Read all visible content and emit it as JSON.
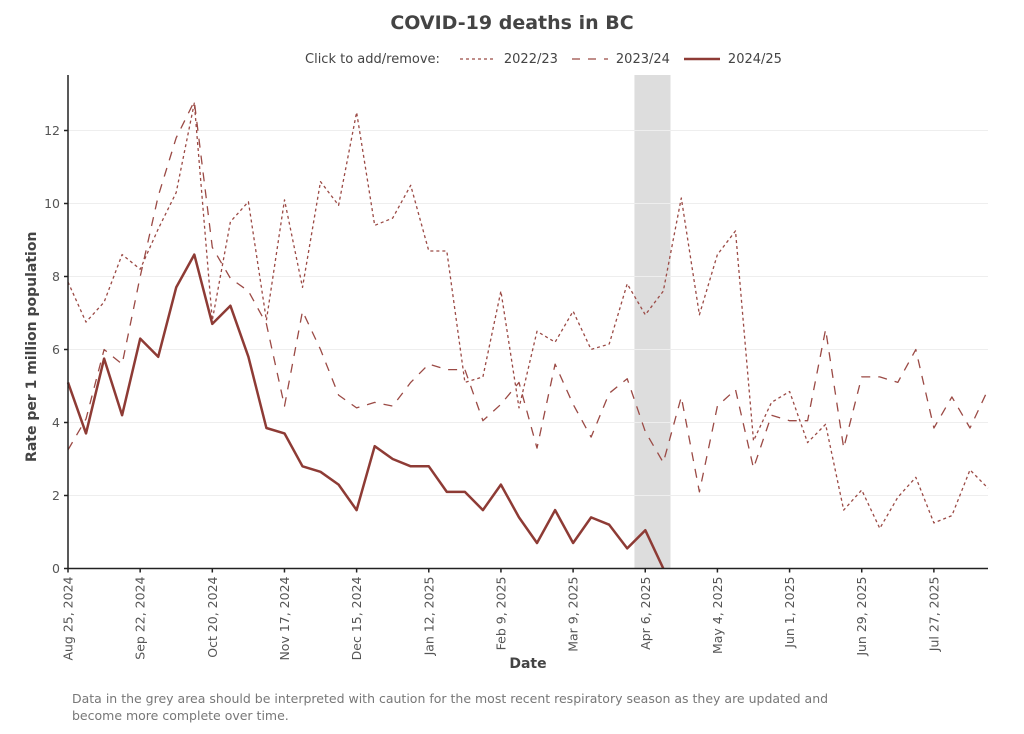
{
  "chart_data": {
    "type": "line",
    "title": "COVID-19 deaths in BC",
    "xlabel": "Date",
    "ylabel": "Rate per 1 million population",
    "ylim": [
      0,
      13.5
    ],
    "yticks": [
      0,
      2,
      4,
      6,
      8,
      10,
      12
    ],
    "x_start": "2024-08-25",
    "x_interval": "weekly",
    "xlim_weeks": [
      0,
      51
    ],
    "xtick_labels": [
      "Aug 25, 2024",
      "Sep 22, 2024",
      "Oct 20, 2024",
      "Nov 17, 2024",
      "Dec 15, 2024",
      "Jan 12, 2025",
      "Feb 9, 2025",
      "Mar 9, 2025",
      "Apr 6, 2025",
      "May 4, 2025",
      "Jun 1, 2025",
      "Jun 29, 2025",
      "Jul 27, 2025"
    ],
    "xtick_weeks": [
      0,
      4,
      8,
      12,
      16,
      20,
      24,
      28,
      32,
      36,
      40,
      44,
      48
    ],
    "grid": "horizontal",
    "legend": {
      "title": "Click to add/remove:",
      "placement": "top-center"
    },
    "caution_band": {
      "start_week": 31.4,
      "end_week": 33.4,
      "color": "#dddddd"
    },
    "series": [
      {
        "name": "2022/23",
        "style": "dotted",
        "color": "#9b4a45",
        "values": [
          7.85,
          6.75,
          7.3,
          8.6,
          8.2,
          9.3,
          10.3,
          12.75,
          6.8,
          9.5,
          10.05,
          6.8,
          10.1,
          7.7,
          10.6,
          9.95,
          12.5,
          9.4,
          9.6,
          10.5,
          8.7,
          8.7,
          5.1,
          5.25,
          7.6,
          4.4,
          6.5,
          6.2,
          7.05,
          6.0,
          6.15,
          7.8,
          6.95,
          7.6,
          10.15,
          6.95,
          8.6,
          9.25,
          3.5,
          4.55,
          4.85,
          3.45,
          3.95,
          1.6,
          2.15,
          1.1,
          1.95,
          2.5,
          1.25,
          1.45,
          2.7,
          2.2
        ]
      },
      {
        "name": "2023/24",
        "style": "dashed",
        "color": "#9b4a45",
        "values": [
          3.25,
          4.1,
          6.0,
          5.6,
          8.0,
          10.2,
          11.8,
          12.8,
          8.8,
          7.95,
          7.6,
          6.7,
          4.45,
          7.05,
          6.0,
          4.75,
          4.4,
          4.55,
          4.45,
          5.1,
          5.6,
          5.45,
          5.45,
          4.05,
          4.5,
          5.1,
          3.3,
          5.6,
          4.5,
          3.6,
          4.8,
          5.2,
          3.75,
          2.9,
          4.7,
          2.1,
          4.45,
          4.9,
          2.75,
          4.2,
          4.05,
          4.05,
          6.55,
          3.3,
          5.25,
          5.25,
          5.1,
          6.0,
          3.85,
          4.7,
          3.85,
          4.9
        ]
      },
      {
        "name": "2024/25",
        "style": "solid",
        "color": "#8e3b35",
        "values": [
          5.1,
          3.7,
          5.75,
          4.2,
          6.3,
          5.8,
          7.7,
          8.6,
          6.7,
          7.2,
          5.8,
          3.85,
          3.7,
          2.8,
          2.65,
          2.3,
          1.6,
          3.35,
          3.0,
          2.8,
          2.8,
          2.1,
          2.1,
          1.6,
          2.3,
          1.4,
          0.7,
          1.6,
          0.7,
          1.4,
          1.2,
          0.55,
          1.05,
          0
        ]
      }
    ]
  },
  "footnote": "Data in the grey area should be interpreted with caution for the most recent respiratory season as they are updated and become more complete over time."
}
